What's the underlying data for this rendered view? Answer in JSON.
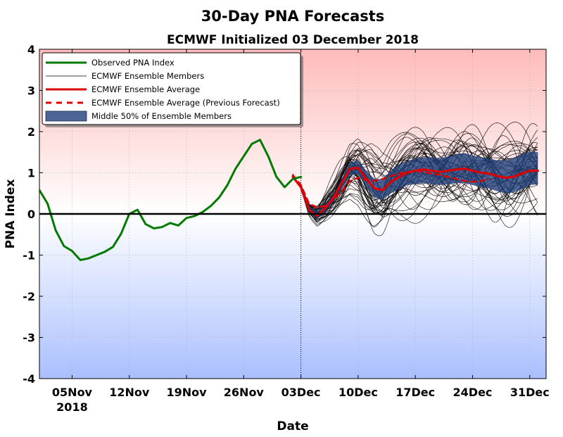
{
  "chart_data": {
    "type": "line",
    "title": "30-Day PNA Forecasts",
    "subtitle": "ECMWF Initialized 03 December 2018",
    "xlabel": "Date",
    "ylabel": "PNA Index",
    "x_start": "2018-11-01",
    "x_end": "2019-01-02",
    "ylim": [
      -4,
      4
    ],
    "yticks": [
      -4,
      -3,
      -2,
      -1,
      0,
      1,
      2,
      3,
      4
    ],
    "xticks": [
      {
        "date": "2018-11-05",
        "label": "05Nov",
        "sublabel": "2018"
      },
      {
        "date": "2018-11-12",
        "label": "12Nov",
        "sublabel": ""
      },
      {
        "date": "2018-11-19",
        "label": "19Nov",
        "sublabel": ""
      },
      {
        "date": "2018-11-26",
        "label": "26Nov",
        "sublabel": ""
      },
      {
        "date": "2018-12-03",
        "label": "03Dec",
        "sublabel": ""
      },
      {
        "date": "2018-12-10",
        "label": "10Dec",
        "sublabel": ""
      },
      {
        "date": "2018-12-17",
        "label": "17Dec",
        "sublabel": ""
      },
      {
        "date": "2018-12-24",
        "label": "24Dec",
        "sublabel": ""
      },
      {
        "date": "2018-12-31",
        "label": "31Dec",
        "sublabel": ""
      }
    ],
    "init_date": "2018-12-03",
    "grid": true,
    "legend_position": "top-left",
    "colors": {
      "observed": "#007a00",
      "members": "#000000",
      "average": "#dd0000",
      "previous": "#dd0000",
      "band": "#1f3f7a",
      "bg_positive": "#ffbbbb",
      "bg_negative": "#aabfff"
    },
    "legend": [
      {
        "label": "Observed PNA Index",
        "style": "observed"
      },
      {
        "label": "ECMWF Ensemble Members",
        "style": "members"
      },
      {
        "label": "ECMWF Ensemble Average",
        "style": "average"
      },
      {
        "label": "ECMWF Ensemble Average (Previous Forecast)",
        "style": "previous"
      },
      {
        "label": "Middle 50% of Ensemble Members",
        "style": "band"
      }
    ],
    "series": [
      {
        "name": "Observed PNA Index",
        "points": [
          [
            "2018-11-01",
            0.58
          ],
          [
            "2018-11-02",
            0.25
          ],
          [
            "2018-11-03",
            -0.4
          ],
          [
            "2018-11-04",
            -0.78
          ],
          [
            "2018-11-05",
            -0.9
          ],
          [
            "2018-11-06",
            -1.12
          ],
          [
            "2018-11-07",
            -1.08
          ],
          [
            "2018-11-08",
            -1.0
          ],
          [
            "2018-11-09",
            -0.92
          ],
          [
            "2018-11-10",
            -0.8
          ],
          [
            "2018-11-11",
            -0.48
          ],
          [
            "2018-11-12",
            0.0
          ],
          [
            "2018-11-13",
            0.1
          ],
          [
            "2018-11-14",
            -0.25
          ],
          [
            "2018-11-15",
            -0.35
          ],
          [
            "2018-11-16",
            -0.32
          ],
          [
            "2018-11-17",
            -0.22
          ],
          [
            "2018-11-18",
            -0.28
          ],
          [
            "2018-11-19",
            -0.1
          ],
          [
            "2018-11-20",
            -0.05
          ],
          [
            "2018-11-21",
            0.05
          ],
          [
            "2018-11-22",
            0.2
          ],
          [
            "2018-11-23",
            0.4
          ],
          [
            "2018-11-24",
            0.7
          ],
          [
            "2018-11-25",
            1.1
          ],
          [
            "2018-11-26",
            1.4
          ],
          [
            "2018-11-27",
            1.7
          ],
          [
            "2018-11-28",
            1.8
          ],
          [
            "2018-11-29",
            1.4
          ],
          [
            "2018-11-30",
            0.9
          ],
          [
            "2018-12-01",
            0.65
          ],
          [
            "2018-12-02",
            0.85
          ],
          [
            "2018-12-03",
            0.9
          ]
        ]
      },
      {
        "name": "ECMWF Ensemble Average",
        "points": [
          [
            "2018-12-02",
            0.9
          ],
          [
            "2018-12-03",
            0.65
          ],
          [
            "2018-12-04",
            0.1
          ],
          [
            "2018-12-05",
            -0.05
          ],
          [
            "2018-12-06",
            0.15
          ],
          [
            "2018-12-07",
            0.4
          ],
          [
            "2018-12-08",
            0.75
          ],
          [
            "2018-12-09",
            1.1
          ],
          [
            "2018-12-10",
            1.12
          ],
          [
            "2018-12-11",
            0.85
          ],
          [
            "2018-12-12",
            0.62
          ],
          [
            "2018-12-13",
            0.58
          ],
          [
            "2018-12-14",
            0.78
          ],
          [
            "2018-12-15",
            0.9
          ],
          [
            "2018-12-16",
            1.0
          ],
          [
            "2018-12-17",
            1.05
          ],
          [
            "2018-12-18",
            1.08
          ],
          [
            "2018-12-19",
            1.05
          ],
          [
            "2018-12-20",
            1.02
          ],
          [
            "2018-12-21",
            1.05
          ],
          [
            "2018-12-22",
            1.08
          ],
          [
            "2018-12-23",
            1.1
          ],
          [
            "2018-12-24",
            1.05
          ],
          [
            "2018-12-25",
            1.0
          ],
          [
            "2018-12-26",
            0.98
          ],
          [
            "2018-12-27",
            0.92
          ],
          [
            "2018-12-28",
            0.88
          ],
          [
            "2018-12-29",
            0.9
          ],
          [
            "2018-12-30",
            0.98
          ],
          [
            "2018-12-31",
            1.05
          ],
          [
            "2019-01-01",
            1.05
          ]
        ]
      },
      {
        "name": "ECMWF Ensemble Average (Previous Forecast)",
        "points": [
          [
            "2018-12-02",
            0.95
          ],
          [
            "2018-12-03",
            0.7
          ],
          [
            "2018-12-04",
            0.25
          ],
          [
            "2018-12-05",
            0.15
          ],
          [
            "2018-12-06",
            0.2
          ],
          [
            "2018-12-07",
            0.35
          ],
          [
            "2018-12-08",
            0.55
          ],
          [
            "2018-12-09",
            0.8
          ],
          [
            "2018-12-10",
            0.88
          ],
          [
            "2018-12-11",
            0.82
          ],
          [
            "2018-12-12",
            0.8
          ],
          [
            "2018-12-13",
            0.85
          ],
          [
            "2018-12-14",
            0.92
          ],
          [
            "2018-12-15",
            0.98
          ],
          [
            "2018-12-16",
            1.02
          ],
          [
            "2018-12-17",
            1.05
          ],
          [
            "2018-12-18",
            1.02
          ],
          [
            "2018-12-19",
            0.98
          ],
          [
            "2018-12-20",
            0.95
          ],
          [
            "2018-12-21",
            0.9
          ],
          [
            "2018-12-22",
            0.85
          ],
          [
            "2018-12-23",
            0.8
          ],
          [
            "2018-12-24",
            0.78
          ],
          [
            "2018-12-25",
            0.8
          ],
          [
            "2018-12-26",
            0.85
          ]
        ]
      },
      {
        "name": "Middle 50% of Ensemble Members",
        "band": [
          [
            "2018-12-03",
            0.55,
            0.75
          ],
          [
            "2018-12-04",
            0.02,
            0.2
          ],
          [
            "2018-12-05",
            -0.12,
            0.05
          ],
          [
            "2018-12-06",
            0.05,
            0.25
          ],
          [
            "2018-12-07",
            0.3,
            0.5
          ],
          [
            "2018-12-08",
            0.6,
            0.85
          ],
          [
            "2018-12-09",
            0.95,
            1.25
          ],
          [
            "2018-12-10",
            0.95,
            1.3
          ],
          [
            "2018-12-11",
            0.65,
            1.05
          ],
          [
            "2018-12-12",
            0.4,
            0.85
          ],
          [
            "2018-12-13",
            0.35,
            0.85
          ],
          [
            "2018-12-14",
            0.5,
            1.05
          ],
          [
            "2018-12-15",
            0.6,
            1.2
          ],
          [
            "2018-12-16",
            0.7,
            1.28
          ],
          [
            "2018-12-17",
            0.72,
            1.35
          ],
          [
            "2018-12-18",
            0.75,
            1.38
          ],
          [
            "2018-12-19",
            0.72,
            1.38
          ],
          [
            "2018-12-20",
            0.7,
            1.35
          ],
          [
            "2018-12-21",
            0.72,
            1.4
          ],
          [
            "2018-12-22",
            0.75,
            1.45
          ],
          [
            "2018-12-23",
            0.75,
            1.48
          ],
          [
            "2018-12-24",
            0.7,
            1.42
          ],
          [
            "2018-12-25",
            0.65,
            1.38
          ],
          [
            "2018-12-26",
            0.62,
            1.35
          ],
          [
            "2018-12-27",
            0.55,
            1.3
          ],
          [
            "2018-12-28",
            0.5,
            1.3
          ],
          [
            "2018-12-29",
            0.52,
            1.35
          ],
          [
            "2018-12-30",
            0.6,
            1.45
          ],
          [
            "2018-12-31",
            0.7,
            1.52
          ],
          [
            "2019-01-01",
            0.72,
            1.5
          ]
        ]
      }
    ]
  }
}
